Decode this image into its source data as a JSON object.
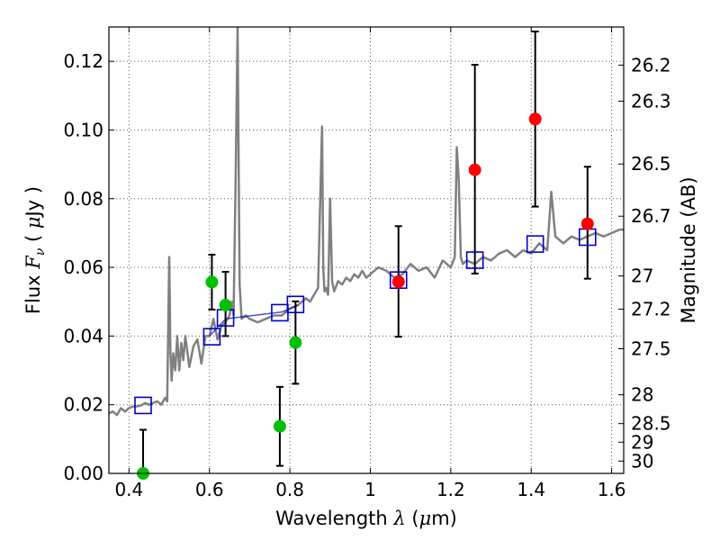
{
  "chart_data": {
    "type": "scatter",
    "xlabel": "Wavelength λ (μm)",
    "xlabel_parts": [
      "Wavelength  ",
      "λ",
      " (",
      "μ",
      "m)"
    ],
    "ylabel": "Flux F_ν ( μJy )",
    "ylabel_parts": [
      "Flux  ",
      "F",
      "ν",
      "  (  ",
      "μ",
      "Jy )"
    ],
    "y2label": "Magnitude (AB)",
    "xlim": [
      0.35,
      1.63
    ],
    "ylim": [
      0.0,
      0.13
    ],
    "xticks": [
      0.4,
      0.6,
      0.8,
      1.0,
      1.2,
      1.4,
      1.6
    ],
    "xtick_labels": [
      "0.4",
      "0.6",
      "0.8",
      "1",
      "1.2",
      "1.4",
      "1.6"
    ],
    "yticks": [
      0.0,
      0.02,
      0.04,
      0.06,
      0.08,
      0.1,
      0.12
    ],
    "ytick_labels": [
      "0.00",
      "0.02",
      "0.04",
      "0.06",
      "0.08",
      "0.10",
      "0.12"
    ],
    "y2_ticks": [
      {
        "flux": 0.1189,
        "label": "26.2"
      },
      {
        "flux": 0.1084,
        "label": "26.3"
      },
      {
        "flux": 0.0901,
        "label": "26.5"
      },
      {
        "flux": 0.0749,
        "label": "26.7"
      },
      {
        "flux": 0.0575,
        "label": "27"
      },
      {
        "flux": 0.0478,
        "label": "27.2"
      },
      {
        "flux": 0.0363,
        "label": "27.5"
      },
      {
        "flux": 0.0229,
        "label": "28"
      },
      {
        "flux": 0.0145,
        "label": "28.5"
      },
      {
        "flux": 0.0091,
        "label": "29"
      },
      {
        "flux": 0.0036,
        "label": "30"
      }
    ],
    "grid": true,
    "colors": {
      "model": "#808080",
      "model_binned": "#0000cc",
      "detection_optical": "#00c000",
      "detection_nir": "#ff0000",
      "error_bar": "#000000",
      "axis": "#000000",
      "grid": "#555555"
    },
    "series": [
      {
        "name": "model spectrum",
        "kind": "line",
        "x": [
          0.35,
          0.36,
          0.37,
          0.38,
          0.39,
          0.4,
          0.41,
          0.42,
          0.43,
          0.44,
          0.45,
          0.46,
          0.47,
          0.48,
          0.49,
          0.495,
          0.5,
          0.503,
          0.506,
          0.51,
          0.515,
          0.52,
          0.525,
          0.53,
          0.535,
          0.54,
          0.55,
          0.56,
          0.57,
          0.58,
          0.59,
          0.6,
          0.61,
          0.62,
          0.63,
          0.64,
          0.65,
          0.656,
          0.66,
          0.665,
          0.67,
          0.675,
          0.68,
          0.69,
          0.7,
          0.72,
          0.74,
          0.76,
          0.78,
          0.8,
          0.82,
          0.83,
          0.84,
          0.85,
          0.86,
          0.87,
          0.88,
          0.883,
          0.886,
          0.89,
          0.895,
          0.9,
          0.905,
          0.91,
          0.92,
          0.93,
          0.94,
          0.95,
          0.96,
          0.97,
          0.98,
          0.99,
          1.0,
          1.02,
          1.04,
          1.06,
          1.08,
          1.1,
          1.12,
          1.14,
          1.16,
          1.18,
          1.2,
          1.21,
          1.215,
          1.22,
          1.225,
          1.23,
          1.24,
          1.26,
          1.28,
          1.3,
          1.32,
          1.34,
          1.36,
          1.38,
          1.4,
          1.42,
          1.44,
          1.45,
          1.46,
          1.47,
          1.48,
          1.5,
          1.52,
          1.54,
          1.56,
          1.58,
          1.6,
          1.62,
          1.63
        ],
        "y": [
          0.0175,
          0.018,
          0.017,
          0.019,
          0.018,
          0.019,
          0.0195,
          0.0195,
          0.0198,
          0.0205,
          0.02,
          0.0205,
          0.021,
          0.02,
          0.022,
          0.021,
          0.063,
          0.035,
          0.027,
          0.035,
          0.03,
          0.04,
          0.03,
          0.038,
          0.033,
          0.04,
          0.031,
          0.037,
          0.039,
          0.032,
          0.04,
          0.04,
          0.045,
          0.039,
          0.043,
          0.044,
          0.046,
          0.05,
          0.046,
          0.085,
          0.13,
          0.055,
          0.045,
          0.046,
          0.045,
          0.044,
          0.045,
          0.046,
          0.046,
          0.048,
          0.049,
          0.05,
          0.051,
          0.05,
          0.052,
          0.054,
          0.101,
          0.06,
          0.053,
          0.054,
          0.052,
          0.08,
          0.056,
          0.053,
          0.056,
          0.055,
          0.057,
          0.056,
          0.058,
          0.057,
          0.059,
          0.057,
          0.058,
          0.06,
          0.059,
          0.057,
          0.058,
          0.061,
          0.059,
          0.06,
          0.057,
          0.062,
          0.06,
          0.063,
          0.095,
          0.085,
          0.063,
          0.061,
          0.062,
          0.061,
          0.063,
          0.062,
          0.064,
          0.065,
          0.063,
          0.065,
          0.064,
          0.067,
          0.065,
          0.082,
          0.069,
          0.068,
          0.067,
          0.069,
          0.068,
          0.069,
          0.07,
          0.069,
          0.07,
          0.071,
          0.071
        ]
      },
      {
        "name": "binned model",
        "kind": "line",
        "x": [
          0.6,
          0.64,
          0.78,
          0.82
        ],
        "y": [
          0.04,
          0.045,
          0.047,
          0.049
        ]
      },
      {
        "name": "model band fluxes",
        "kind": "open-square",
        "x": [
          0.435,
          0.606,
          0.64,
          0.775,
          0.814,
          1.07,
          1.26,
          1.41,
          1.54
        ],
        "y": [
          0.0198,
          0.0398,
          0.0453,
          0.0468,
          0.0492,
          0.0563,
          0.0621,
          0.0668,
          0.0688
        ]
      },
      {
        "name": "optical photometry",
        "kind": "point",
        "x": [
          0.435,
          0.606,
          0.64,
          0.775,
          0.814
        ],
        "y": [
          0.0,
          0.0557,
          0.049,
          0.0137,
          0.0381
        ],
        "yerr_low": [
          0.0,
          0.0477,
          0.04,
          0.0022,
          0.0261
        ],
        "yerr_high": [
          0.0127,
          0.0637,
          0.0587,
          0.0252,
          0.0501
        ]
      },
      {
        "name": "near-infrared photometry",
        "kind": "point",
        "x": [
          1.07,
          1.26,
          1.41,
          1.54
        ],
        "y": [
          0.0558,
          0.0884,
          0.1032,
          0.0727
        ],
        "yerr_low": [
          0.0398,
          0.0582,
          0.0777,
          0.0567
        ],
        "yerr_high": [
          0.072,
          0.119,
          0.1287,
          0.0893
        ]
      }
    ]
  }
}
